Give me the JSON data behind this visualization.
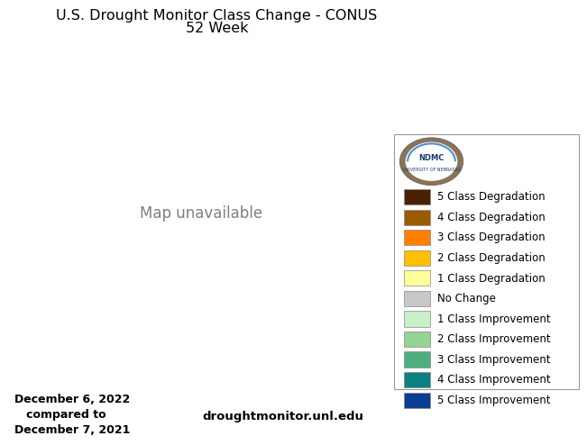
{
  "title_line1": "U.S. Drought Monitor Class Change - CONUS",
  "title_line2": "52 Week",
  "date_text": "December 6, 2022\n   compared to\nDecember 7, 2021",
  "website_text": "droughtmonitor.unl.edu",
  "legend_entries": [
    {
      "label": "5 Class Degradation",
      "color": "#4A2100"
    },
    {
      "label": "4 Class Degradation",
      "color": "#9B5B00"
    },
    {
      "label": "3 Class Degradation",
      "color": "#FF8000"
    },
    {
      "label": "2 Class Degradation",
      "color": "#FFC000"
    },
    {
      "label": "1 Class Degradation",
      "color": "#FFFF99"
    },
    {
      "label": "No Change",
      "color": "#C8C8C8"
    },
    {
      "label": "1 Class Improvement",
      "color": "#C9F0C9"
    },
    {
      "label": "2 Class Improvement",
      "color": "#93D393"
    },
    {
      "label": "3 Class Improvement",
      "color": "#4CAF7D"
    },
    {
      "label": "4 Class Improvement",
      "color": "#0B8080"
    },
    {
      "label": "5 Class Improvement",
      "color": "#0B3D91"
    }
  ],
  "ndmc_logo_colors": {
    "outer_ring": "#6B5A3E",
    "inner": "#FFFFFF",
    "text_ndmc": "#1A3A6B",
    "text_ne": "#1A3A6B"
  },
  "background_color": "#FFFFFF",
  "title_fontsize": 11.5,
  "subtitle_fontsize": 11.5,
  "legend_fontsize": 8.5,
  "date_fontsize": 9,
  "website_fontsize": 9.5,
  "fig_width": 6.4,
  "fig_height": 4.8,
  "dpi": 100,
  "map_extent": [
    -125,
    -66.5,
    24.0,
    49.5
  ],
  "state_colors": {
    "Washington": "#0B3D91",
    "Oregon": "#4CAF7D",
    "California": "#C9F0C9",
    "Nevada": "#C8C8C8",
    "Idaho": "#4CAF7D",
    "Montana": "#4CAF7D",
    "Wyoming": "#93D393",
    "Utah": "#93D393",
    "Colorado": "#C9F0C9",
    "Arizona": "#C8C8C8",
    "New Mexico": "#C9F0C9",
    "North Dakota": "#93D393",
    "South Dakota": "#FF8000",
    "Nebraska": "#FF8000",
    "Kansas": "#9B5B00",
    "Oklahoma": "#4A2100",
    "Texas": "#FFC000",
    "Minnesota": "#C9F0C9",
    "Iowa": "#FFC000",
    "Missouri": "#FF8000",
    "Arkansas": "#FF8000",
    "Louisiana": "#FFC000",
    "Wisconsin": "#C9F0C9",
    "Illinois": "#FFFF99",
    "Indiana": "#FFC000",
    "Michigan": "#FFC000",
    "Ohio": "#C9F0C9",
    "Kentucky": "#FFC000",
    "Tennessee": "#FF8000",
    "Mississippi": "#FFC000",
    "Alabama": "#FFFF99",
    "Georgia": "#C9F0C9",
    "Florida": "#C8C8C8",
    "South Carolina": "#93D393",
    "North Carolina": "#93D393",
    "Virginia": "#93D393",
    "West Virginia": "#93D393",
    "Maryland": "#93D393",
    "Delaware": "#C9F0C9",
    "Pennsylvania": "#C9F0C9",
    "New Jersey": "#C9F0C9",
    "New York": "#C9F0C9",
    "Connecticut": "#C9F0C9",
    "Rhode Island": "#C9F0C9",
    "Massachusetts": "#C9F0C9",
    "Vermont": "#C9F0C9",
    "New Hampshire": "#C9F0C9",
    "Maine": "#C9F0C9"
  }
}
